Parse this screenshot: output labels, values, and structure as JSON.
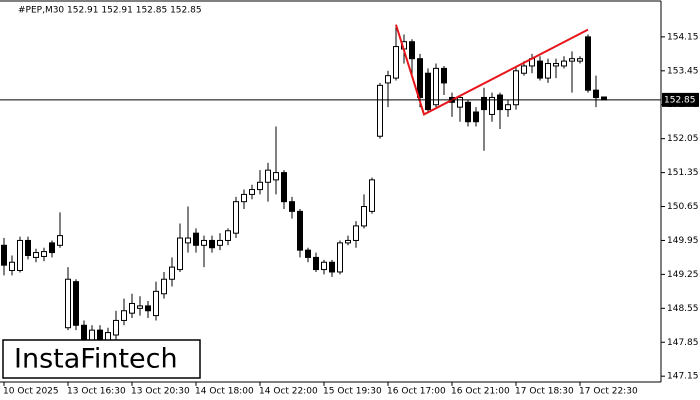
{
  "chart_data": {
    "type": "candlestick",
    "title": "#PEP,M30  152.91 152.91 152.85 152.85",
    "watermark": "InstaFintech",
    "categories": [
      "10 Oct 2025",
      null,
      null,
      null,
      null,
      null,
      null,
      null,
      "13 Oct 16:30",
      null,
      null,
      null,
      null,
      null,
      null,
      null,
      "13 Oct 20:30",
      null,
      null,
      null,
      null,
      null,
      null,
      null,
      "14 Oct 18:00",
      null,
      null,
      null,
      null,
      null,
      null,
      null,
      "14 Oct 22:00",
      null,
      null,
      null,
      null,
      null,
      null,
      null,
      "15 Oct 19:30",
      null,
      null,
      null,
      null,
      null,
      null,
      null,
      "16 Oct 17:00",
      null,
      null,
      null,
      null,
      null,
      null,
      null,
      "16 Oct 21:00",
      null,
      null,
      null,
      null,
      null,
      null,
      null,
      "17 Oct 18:30",
      null,
      null,
      null,
      null,
      null,
      null,
      null,
      "17 Oct 22:30",
      null,
      null,
      null
    ],
    "open": [
      149.85,
      149.33,
      149.33,
      149.95,
      149.6,
      149.62,
      149.9,
      149.85,
      148.15,
      149.1,
      148.2,
      147.75,
      148.1,
      147.85,
      148.0,
      148.3,
      148.45,
      148.55,
      148.6,
      148.4,
      148.85,
      149.15,
      149.35,
      149.9,
      150.1,
      149.85,
      149.95,
      149.85,
      149.95,
      150.1,
      150.75,
      150.9,
      151.0,
      151.15,
      151.2,
      151.35,
      150.75,
      150.55,
      149.75,
      149.6,
      149.35,
      149.5,
      149.3,
      149.9,
      149.95,
      150.25,
      150.55,
      152.1,
      153.2,
      153.3,
      153.9,
      154.05,
      153.7,
      153.4,
      152.75,
      153.5,
      152.9,
      152.7,
      152.8,
      152.6,
      152.9,
      152.55,
      152.95,
      152.65,
      152.75,
      153.4,
      153.55,
      153.65,
      153.3,
      153.55,
      153.55,
      153.65,
      153.65,
      154.15,
      153.05,
      152.91
    ],
    "high": [
      150.0,
      149.64,
      150.03,
      150.03,
      149.78,
      149.8,
      149.95,
      150.53,
      149.4,
      149.15,
      148.3,
      148.2,
      148.2,
      148.15,
      148.5,
      148.75,
      148.85,
      148.8,
      148.7,
      149.1,
      149.3,
      149.6,
      150.3,
      150.65,
      150.2,
      150.05,
      150.05,
      150.1,
      150.2,
      150.85,
      151.0,
      151.1,
      151.4,
      151.55,
      152.3,
      151.4,
      150.85,
      150.6,
      149.8,
      149.7,
      149.55,
      149.55,
      149.95,
      150.05,
      150.35,
      150.9,
      151.25,
      153.2,
      153.45,
      154.4,
      154.2,
      154.1,
      153.8,
      153.5,
      153.6,
      153.55,
      153.0,
      152.95,
      152.85,
      152.7,
      153.1,
      153.0,
      153.0,
      152.85,
      153.55,
      153.65,
      153.8,
      153.75,
      153.7,
      153.7,
      153.75,
      153.85,
      153.75,
      154.2,
      153.35,
      152.91
    ],
    "low": [
      149.23,
      149.23,
      149.29,
      149.56,
      149.5,
      149.52,
      149.6,
      149.8,
      148.1,
      148.1,
      147.5,
      147.6,
      147.6,
      147.7,
      147.9,
      148.2,
      148.35,
      148.4,
      148.35,
      148.3,
      148.75,
      149.0,
      149.3,
      149.7,
      149.7,
      149.4,
      149.7,
      149.75,
      149.85,
      150.0,
      150.6,
      150.8,
      150.9,
      150.75,
      150.9,
      150.6,
      150.4,
      149.6,
      149.5,
      149.3,
      149.25,
      149.2,
      149.25,
      149.85,
      149.8,
      150.2,
      150.5,
      152.05,
      152.7,
      153.25,
      153.6,
      153.3,
      152.7,
      152.6,
      152.7,
      152.95,
      152.5,
      152.4,
      152.3,
      152.3,
      151.8,
      152.4,
      152.25,
      152.5,
      152.65,
      153.35,
      153.4,
      153.25,
      153.2,
      153.3,
      153.5,
      153.0,
      153.6,
      153.0,
      152.7,
      152.85
    ],
    "close": [
      149.44,
      149.5,
      149.95,
      149.64,
      149.7,
      149.72,
      149.7,
      150.05,
      149.15,
      148.2,
      147.85,
      148.1,
      147.85,
      148.05,
      148.3,
      148.5,
      148.65,
      148.6,
      148.5,
      148.9,
      149.15,
      149.4,
      150.0,
      150.0,
      149.85,
      149.95,
      149.8,
      149.95,
      150.15,
      150.75,
      150.9,
      151.0,
      151.15,
      151.4,
      151.35,
      150.75,
      150.55,
      149.75,
      149.6,
      149.35,
      149.5,
      149.3,
      149.9,
      149.95,
      150.25,
      150.65,
      151.2,
      153.15,
      153.35,
      153.95,
      154.05,
      153.7,
      152.9,
      152.65,
      153.5,
      153.2,
      152.8,
      152.9,
      152.4,
      152.4,
      152.65,
      152.9,
      152.65,
      152.75,
      153.45,
      153.55,
      153.7,
      153.3,
      153.6,
      153.6,
      153.65,
      153.7,
      153.7,
      153.05,
      152.9,
      152.85
    ],
    "up_color": "#ffffff",
    "down_color": "#000000",
    "wick_color": "#000000",
    "ylim": [
      147.03,
      154.89
    ],
    "yticks": [
      147.15,
      147.85,
      148.55,
      149.25,
      149.95,
      150.65,
      151.35,
      152.05,
      152.75,
      153.45,
      154.15
    ],
    "current_price": 152.85,
    "pattern_line": {
      "color": "#e8151b",
      "x": [
        49,
        52.5,
        73
      ],
      "y": [
        154.4,
        152.55,
        154.3
      ]
    }
  }
}
